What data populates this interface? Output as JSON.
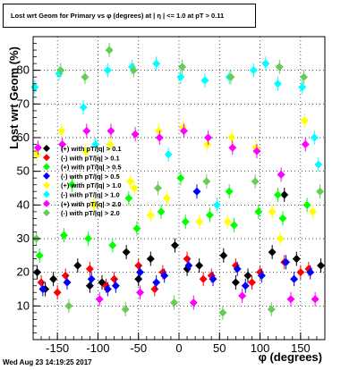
{
  "chart_data": {
    "type": "scatter",
    "title": "Lost wrt Geom for Primary vs φ (degrees) at | η | <= 1.0 at pT > 0.11",
    "xlabel": "φ (degrees)",
    "ylabel": "Lost wrt Geom (%)",
    "xlim": [
      -180,
      180
    ],
    "ylim": [
      0,
      90
    ],
    "xticks": [
      -150,
      -100,
      -50,
      0,
      50,
      100,
      150
    ],
    "yticks": [
      10,
      20,
      30,
      40,
      50,
      60,
      70,
      80
    ],
    "grid": true,
    "legend_position": "left-middle",
    "timestamp": "Wed Aug 23 14:19:25 2017",
    "series": [
      {
        "name": "(+) with pT/|q| > 0.1",
        "color": "#000000",
        "x": [
          -175,
          -155,
          -125,
          -95,
          -65,
          -35,
          -5,
          25,
          55,
          85,
          115,
          145,
          175,
          -165,
          -110,
          -50,
          10,
          70,
          130
        ],
        "y": [
          20,
          18,
          22,
          17,
          26,
          24,
          28,
          22,
          25,
          19,
          26,
          24,
          22,
          15,
          16,
          18,
          21,
          17,
          43
        ]
      },
      {
        "name": "(-) with pT/|q| > 0.1",
        "color": "#ff0000",
        "x": [
          -170,
          -140,
          -110,
          -80,
          -50,
          -20,
          10,
          40,
          70,
          100,
          130,
          160,
          -150,
          -90,
          -30,
          30,
          90,
          150
        ],
        "y": [
          17,
          19,
          21,
          18,
          22,
          20,
          24,
          19,
          22,
          20,
          23,
          21,
          14,
          16,
          15,
          18,
          17,
          20
        ]
      },
      {
        "name": "(+) with pT/|q| > 0.5",
        "color": "#00ff00",
        "x": [
          -172,
          -142,
          -112,
          -82,
          -52,
          -22,
          8,
          38,
          68,
          98,
          128,
          158,
          -132,
          -62,
          2,
          62,
          122
        ],
        "y": [
          25,
          31,
          30,
          28,
          33,
          38,
          35,
          37,
          34,
          38,
          36,
          40,
          46,
          42,
          48,
          44,
          43
        ]
      },
      {
        "name": "(-) with pT/|q| > 0.5",
        "color": "#0000ff",
        "x": [
          -168,
          -138,
          -108,
          -78,
          -48,
          -18,
          12,
          42,
          72,
          102,
          132,
          162,
          -88,
          -28,
          22,
          82,
          142
        ],
        "y": [
          15,
          17,
          18,
          16,
          20,
          19,
          22,
          18,
          21,
          19,
          23,
          20,
          15,
          17,
          44,
          16,
          18
        ]
      },
      {
        "name": "(+) with pT/|q| > 1.0",
        "color": "#ffff00",
        "x": [
          -175,
          -145,
          -115,
          -85,
          -55,
          -25,
          5,
          35,
          65,
          95,
          125,
          155,
          -105,
          -35,
          25,
          115,
          165,
          -15,
          -60,
          60
        ],
        "y": [
          55,
          62,
          56,
          58,
          45,
          62,
          63,
          58,
          60,
          57,
          30,
          65,
          40,
          37,
          35,
          38,
          38,
          42,
          47,
          35
        ]
      },
      {
        "name": "(-) with pT/|q| > 1.0",
        "color": "#00ffff",
        "x": [
          -178,
          -148,
          -118,
          -88,
          -58,
          -28,
          2,
          32,
          62,
          92,
          122,
          152,
          172,
          -103,
          -13,
          47,
          107,
          167
        ],
        "y": [
          75,
          79,
          69,
          80,
          81,
          82,
          78,
          77,
          78,
          80,
          76,
          75,
          52,
          58,
          55,
          40,
          82,
          60
        ]
      },
      {
        "name": "(+) with pT/|q| > 2.0",
        "color": "#ff00ff",
        "x": [
          -174,
          -144,
          -114,
          -84,
          -54,
          -24,
          6,
          36,
          66,
          96,
          126,
          156,
          -98,
          -48,
          18,
          78,
          138,
          168
        ],
        "y": [
          57,
          58,
          62,
          62,
          61,
          60,
          62,
          60,
          57,
          56,
          49,
          58,
          12,
          14,
          11,
          13,
          12,
          12
        ]
      },
      {
        "name": "(-) with pT/|q| > 2.0",
        "color": "#66cc55",
        "x": [
          -176,
          -146,
          -116,
          -86,
          -56,
          -26,
          4,
          34,
          64,
          94,
          124,
          154,
          174,
          -136,
          -66,
          -6,
          54,
          114
        ],
        "y": [
          30,
          80,
          78,
          86,
          80,
          45,
          81,
          47,
          78,
          47,
          81,
          78,
          44,
          10,
          9,
          11,
          8,
          9
        ]
      }
    ]
  },
  "chart_data_text": {
    "legend_entries": [
      "(+) with pT/|q| > 0.1",
      "(-) with pT/|q| > 0.1",
      "(+) with pT/|q| > 0.5",
      "(-) with pT/|q| > 0.5",
      "(+) with pT/|q| > 1.0",
      "(-) with pT/|q| > 1.0",
      "(+) with pT/|q| > 2.0",
      "(-) with pT/|q| > 2.0"
    ]
  }
}
